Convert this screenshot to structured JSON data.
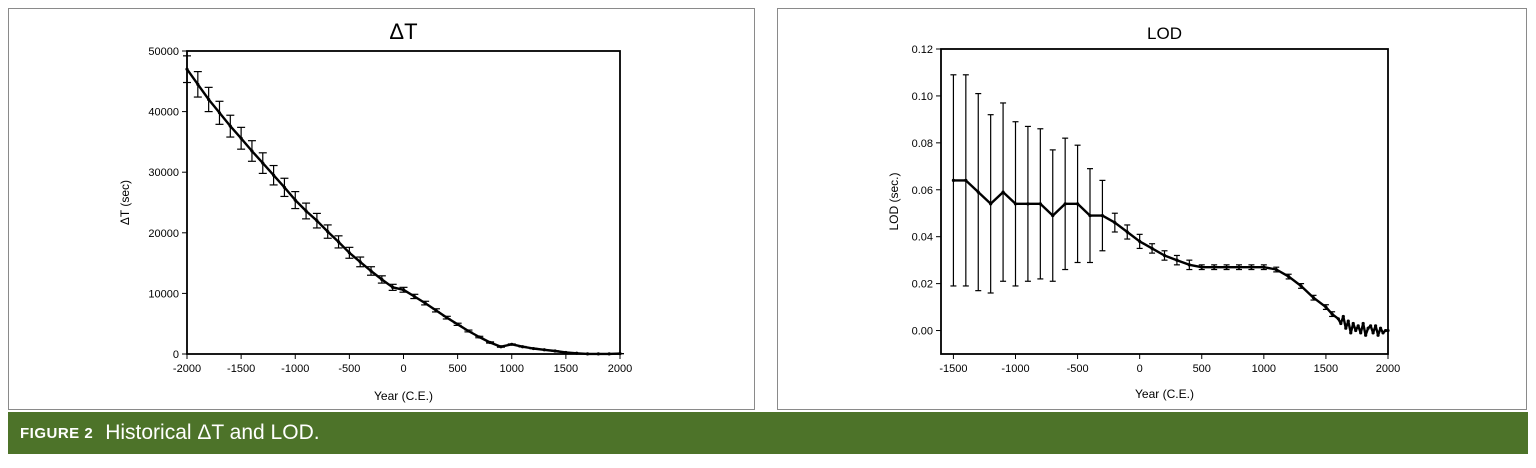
{
  "chart_data": [
    {
      "type": "line",
      "title": "ΔT",
      "xlabel": "Year (C.E.)",
      "ylabel": "ΔT (sec)",
      "xlim": [
        -2000,
        2000
      ],
      "ylim": [
        0,
        50000
      ],
      "xticks": [
        -2000,
        -1500,
        -1000,
        -500,
        0,
        500,
        1000,
        1500,
        2000
      ],
      "yticks": [
        0,
        10000,
        20000,
        30000,
        40000,
        50000
      ],
      "error_bars": true,
      "series": [
        {
          "x": [
            -2000,
            -1900,
            -1800,
            -1700,
            -1600,
            -1500,
            -1400,
            -1300,
            -1200,
            -1100,
            -1000,
            -900,
            -800,
            -700,
            -600,
            -500,
            -400,
            -300,
            -200,
            -100,
            0,
            100,
            200,
            300,
            400,
            500,
            600,
            700,
            800,
            900,
            1000,
            1100,
            1200,
            1300,
            1400,
            1500,
            1600,
            1700,
            1800,
            1900,
            2000
          ],
          "y": [
            47000,
            44500,
            42000,
            39800,
            37600,
            35600,
            33500,
            31500,
            29500,
            27500,
            25400,
            23600,
            22000,
            20200,
            18500,
            16700,
            15200,
            13700,
            12300,
            11000,
            10600,
            9500,
            8400,
            7200,
            6000,
            4900,
            3800,
            2800,
            1900,
            1200,
            1600,
            1200,
            900,
            700,
            500,
            250,
            120,
            15,
            15,
            15,
            60
          ],
          "err": [
            2200,
            2100,
            2000,
            1900,
            1800,
            1800,
            1700,
            1700,
            1600,
            1500,
            1400,
            1300,
            1200,
            1100,
            1000,
            900,
            800,
            700,
            600,
            500,
            400,
            350,
            300,
            260,
            220,
            180,
            150,
            120,
            100,
            80,
            60,
            40,
            30,
            25,
            20,
            15,
            10,
            5,
            5,
            5,
            5
          ]
        }
      ]
    },
    {
      "type": "line",
      "title": "LOD",
      "xlabel": "Year (C.E.)",
      "ylabel": "LOD (sec.)",
      "xlim": [
        -1600,
        2000
      ],
      "ylim": [
        -0.01,
        0.12
      ],
      "xticks": [
        -1500,
        -1000,
        -500,
        0,
        500,
        1000,
        1500,
        2000
      ],
      "yticks": [
        0.0,
        0.02,
        0.04,
        0.06,
        0.08,
        0.1,
        0.12
      ],
      "ytick_labels": [
        "0.00",
        "0.02",
        "0.04",
        "0.06",
        "0.08",
        "0.10",
        "0.12"
      ],
      "error_bars": true,
      "series": [
        {
          "x": [
            -1500,
            -1400,
            -1300,
            -1200,
            -1100,
            -1000,
            -900,
            -800,
            -700,
            -600,
            -500,
            -400,
            -300,
            -200,
            -100,
            0,
            100,
            200,
            300,
            400,
            500,
            600,
            700,
            800,
            900,
            1000,
            1100,
            1200,
            1300,
            1400,
            1500,
            1550,
            1600,
            1620,
            1640,
            1660,
            1680,
            1700,
            1720,
            1740,
            1760,
            1780,
            1800,
            1820,
            1840,
            1860,
            1880,
            1900,
            1920,
            1940,
            1960,
            1980,
            2000
          ],
          "y": [
            0.064,
            0.064,
            0.059,
            0.054,
            0.059,
            0.054,
            0.054,
            0.054,
            0.049,
            0.054,
            0.054,
            0.049,
            0.049,
            0.046,
            0.042,
            0.038,
            0.035,
            0.032,
            0.03,
            0.028,
            0.027,
            0.027,
            0.027,
            0.027,
            0.027,
            0.027,
            0.026,
            0.023,
            0.019,
            0.014,
            0.01,
            0.007,
            0.005,
            0.003,
            0.006,
            0.001,
            0.004,
            -0.001,
            0.003,
            0.0,
            0.002,
            -0.001,
            0.003,
            -0.002,
            0.001,
            0.002,
            -0.001,
            0.002,
            -0.002,
            0.001,
            -0.001,
            0.0,
            0.0
          ],
          "err": [
            0.045,
            0.045,
            0.042,
            0.038,
            0.038,
            0.035,
            0.033,
            0.032,
            0.028,
            0.028,
            0.025,
            0.02,
            0.015,
            0.004,
            0.003,
            0.003,
            0.002,
            0.002,
            0.002,
            0.002,
            0.001,
            0.001,
            0.001,
            0.001,
            0.001,
            0.001,
            0.001,
            0.001,
            0.001,
            0.001,
            0.001,
            0.001,
            0,
            0,
            0,
            0,
            0,
            0,
            0,
            0,
            0,
            0,
            0,
            0,
            0,
            0,
            0,
            0,
            0,
            0,
            0,
            0,
            0
          ]
        }
      ]
    }
  ],
  "caption": {
    "label": "FIGURE 2",
    "text": "Historical ΔT and LOD."
  }
}
